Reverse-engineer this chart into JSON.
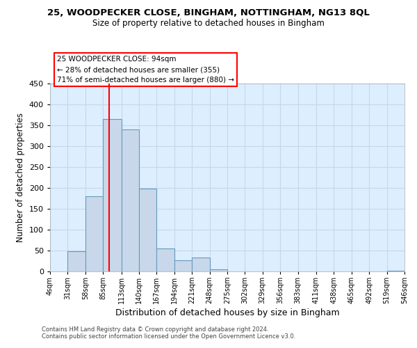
{
  "title1": "25, WOODPECKER CLOSE, BINGHAM, NOTTINGHAM, NG13 8QL",
  "title2": "Size of property relative to detached houses in Bingham",
  "xlabel": "Distribution of detached houses by size in Bingham",
  "ylabel": "Number of detached properties",
  "bin_edges": [
    4,
    31,
    58,
    85,
    113,
    140,
    167,
    194,
    221,
    248,
    275,
    302,
    329,
    356,
    383,
    411,
    438,
    465,
    492,
    519,
    546
  ],
  "counts": [
    0,
    48,
    180,
    365,
    340,
    198,
    55,
    27,
    33,
    5,
    0,
    0,
    0,
    0,
    0,
    0,
    0,
    0,
    0,
    2
  ],
  "bar_facecolor": "#c8d8ea",
  "bar_edgecolor": "#6699bb",
  "grid_color": "#c5d8e8",
  "property_line_x": 94,
  "property_line_color": "red",
  "annotation_title": "25 WOODPECKER CLOSE: 94sqm",
  "annotation_line1": "← 28% of detached houses are smaller (355)",
  "annotation_line2": "71% of semi-detached houses are larger (880) →",
  "annotation_box_facecolor": "white",
  "annotation_box_edgecolor": "red",
  "ylim": [
    0,
    450
  ],
  "xlim": [
    4,
    546
  ],
  "footer1": "Contains HM Land Registry data © Crown copyright and database right 2024.",
  "footer2": "Contains public sector information licensed under the Open Government Licence v3.0.",
  "background_color": "#ddeeff",
  "tick_labels": [
    "4sqm",
    "31sqm",
    "58sqm",
    "85sqm",
    "113sqm",
    "140sqm",
    "167sqm",
    "194sqm",
    "221sqm",
    "248sqm",
    "275sqm",
    "302sqm",
    "329sqm",
    "356sqm",
    "383sqm",
    "411sqm",
    "438sqm",
    "465sqm",
    "492sqm",
    "519sqm",
    "546sqm"
  ]
}
